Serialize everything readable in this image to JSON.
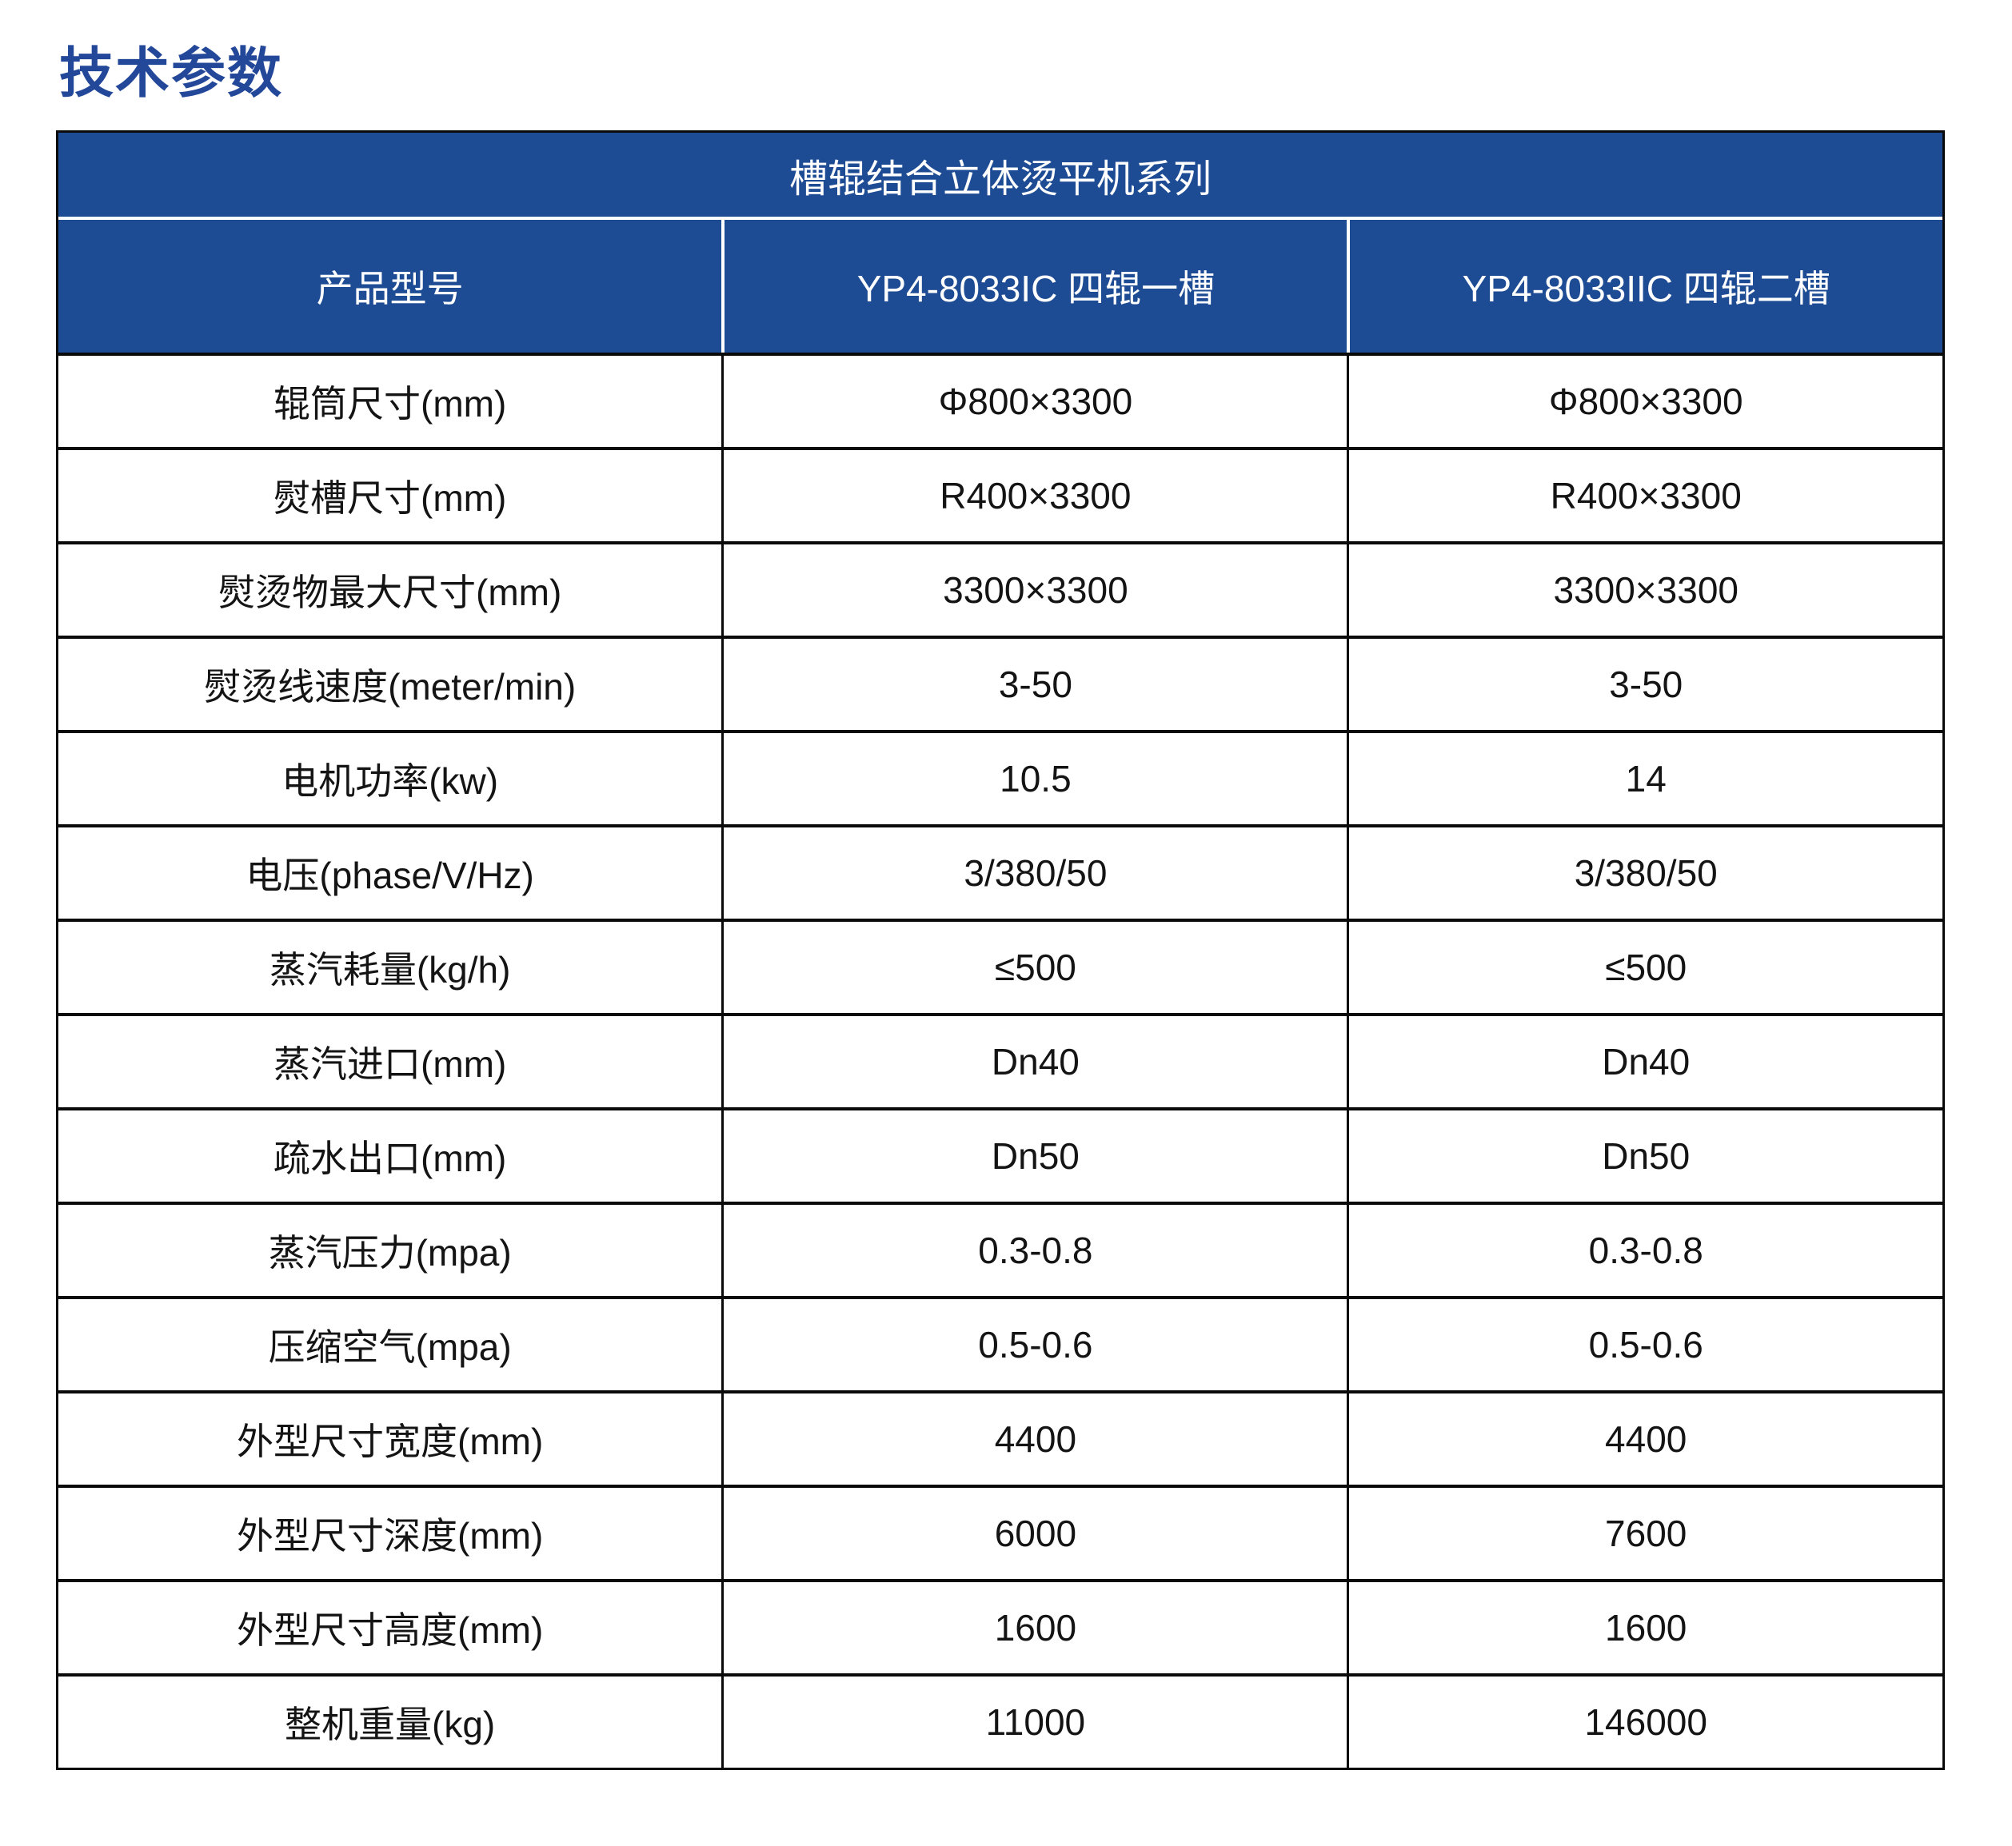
{
  "page": {
    "title": "技术参数"
  },
  "colors": {
    "header_background": "#1e4c94",
    "title_text": "#23489a",
    "grid_border": "#0a0a0a"
  },
  "table": {
    "series_title": "槽辊结合立体烫平机系列",
    "header": {
      "col1": "产品型号",
      "col2": "YP4-8033IC 四辊一槽",
      "col3": "YP4-8033IIC 四辊二槽"
    },
    "rows": [
      {
        "label": "辊筒尺寸(mm)",
        "model1": "Φ800×3300",
        "model2": "Φ800×3300"
      },
      {
        "label": "熨槽尺寸(mm)",
        "model1": "R400×3300",
        "model2": "R400×3300"
      },
      {
        "label": "熨烫物最大尺寸(mm)",
        "model1": "3300×3300",
        "model2": "3300×3300"
      },
      {
        "label": "熨烫线速度(meter/min)",
        "model1": "3-50",
        "model2": "3-50"
      },
      {
        "label": "电机功率(kw)",
        "model1": "10.5",
        "model2": "14"
      },
      {
        "label": "电压(phase/V/Hz)",
        "model1": "3/380/50",
        "model2": "3/380/50"
      },
      {
        "label": "蒸汽耗量(kg/h)",
        "model1": "≤500",
        "model2": "≤500"
      },
      {
        "label": "蒸汽进口(mm)",
        "model1": "Dn40",
        "model2": "Dn40"
      },
      {
        "label": "疏水出口(mm)",
        "model1": "Dn50",
        "model2": "Dn50"
      },
      {
        "label": "蒸汽压力(mpa)",
        "model1": "0.3-0.8",
        "model2": "0.3-0.8"
      },
      {
        "label": "压缩空气(mpa)",
        "model1": "0.5-0.6",
        "model2": "0.5-0.6"
      },
      {
        "label": "外型尺寸宽度(mm)",
        "model1": "4400",
        "model2": "4400"
      },
      {
        "label": "外型尺寸深度(mm)",
        "model1": "6000",
        "model2": "7600"
      },
      {
        "label": "外型尺寸高度(mm)",
        "model1": "1600",
        "model2": "1600"
      },
      {
        "label": "整机重量(kg)",
        "model1": "11000",
        "model2": "146000"
      }
    ]
  }
}
